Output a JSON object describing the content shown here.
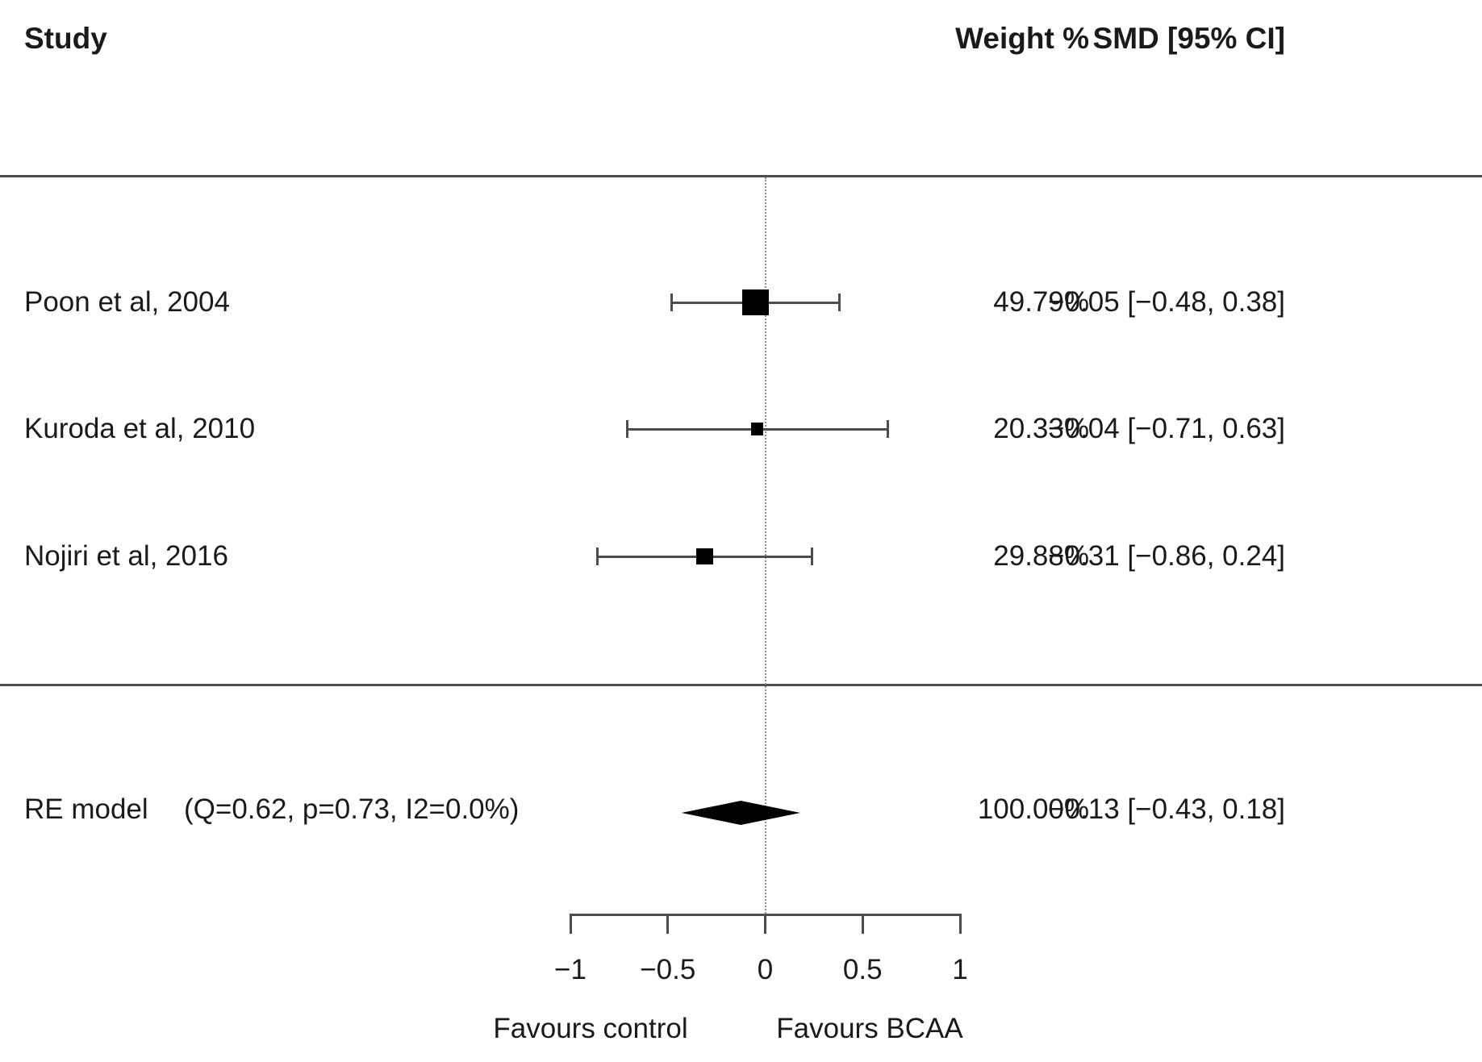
{
  "header": {
    "study": "Study",
    "weight": "Weight %",
    "smd": "SMD [95% CI]"
  },
  "chart_data": {
    "type": "forest",
    "effect_measure": "SMD",
    "studies": [
      {
        "label": "Poon et al, 2004",
        "weight_pct": 49.79,
        "weight_label": "49.79%",
        "smd": -0.05,
        "ci_low": -0.48,
        "ci_high": 0.38,
        "smd_label": "−0.05 [−0.48, 0.38]"
      },
      {
        "label": "Kuroda et al, 2010",
        "weight_pct": 20.33,
        "weight_label": "20.33%",
        "smd": -0.04,
        "ci_low": -0.71,
        "ci_high": 0.63,
        "smd_label": "−0.04 [−0.71, 0.63]"
      },
      {
        "label": "Nojiri et al, 2016",
        "weight_pct": 29.88,
        "weight_label": "29.88%",
        "smd": -0.31,
        "ci_low": -0.86,
        "ci_high": 0.24,
        "smd_label": "−0.31 [−0.86, 0.24]"
      }
    ],
    "summary": {
      "label": "RE model",
      "stats": "(Q=0.62, p=0.73, I2=0.0%)",
      "weight_pct": 100.0,
      "weight_label": "100.00%",
      "smd": -0.13,
      "ci_low": -0.43,
      "ci_high": 0.18,
      "smd_label": "−0.13 [−0.43, 0.18]"
    },
    "axis": {
      "xlim": [
        -1,
        1
      ],
      "ticks": [
        -1,
        -0.5,
        0,
        0.5,
        1
      ],
      "tick_labels": [
        "−1",
        "−0.5",
        "0",
        "0.5",
        "1"
      ],
      "zero_line": 0
    },
    "footer": {
      "left": "Favours control",
      "right": "Favours BCAA"
    },
    "colors": {
      "marker": "#000000",
      "line": "#4d4d4d",
      "text": "#1a1a1a"
    }
  }
}
